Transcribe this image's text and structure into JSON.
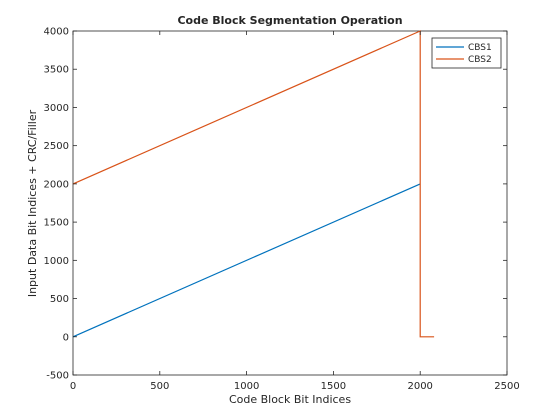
{
  "chart_data": {
    "type": "line",
    "title": "Code Block Segmentation Operation",
    "xlabel": "Code Block Bit Indices",
    "ylabel": "Input Data Bit Indices + CRC/Filler",
    "xlim": [
      0,
      2500
    ],
    "ylim": [
      -500,
      4000
    ],
    "xticks": [
      "0",
      "500",
      "1000",
      "1500",
      "2000",
      "2500"
    ],
    "yticks": [
      "-500",
      "0",
      "500",
      "1000",
      "1500",
      "2000",
      "2500",
      "3000",
      "3500",
      "4000"
    ],
    "xtick_values": [
      0,
      500,
      1000,
      1500,
      2000,
      2500
    ],
    "ytick_values": [
      -500,
      0,
      500,
      1000,
      1500,
      2000,
      2500,
      3000,
      3500,
      4000
    ],
    "grid": false,
    "legend_position": "top-right",
    "series": [
      {
        "name": "CBS1",
        "color": "#0072bd",
        "points": [
          [
            0,
            0
          ],
          [
            2000,
            2000
          ]
        ]
      },
      {
        "name": "CBS2",
        "color": "#d95319",
        "points": [
          [
            0,
            2000
          ],
          [
            2000,
            4000
          ],
          [
            2000,
            0
          ],
          [
            2080,
            0
          ]
        ]
      }
    ]
  }
}
